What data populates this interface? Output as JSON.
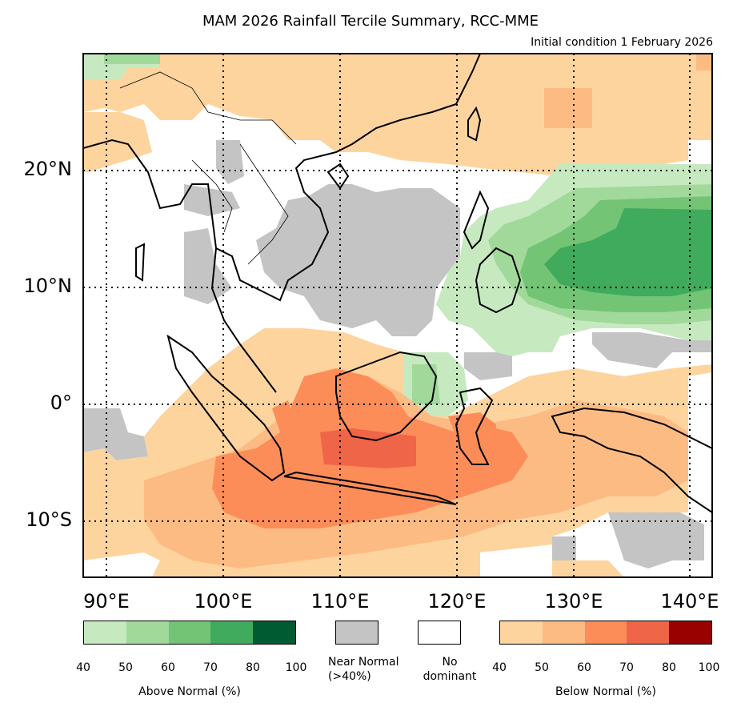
{
  "title": "MAM 2026 Rainfall Tercile Summary, RCC-MME",
  "subtitle": "Initial condition 1 February 2026",
  "lat_labels": [
    "20°N",
    "10°N",
    "0°",
    "10°S"
  ],
  "lon_labels": [
    "90°E",
    "100°E",
    "110°E",
    "120°E",
    "130°E",
    "140°E"
  ],
  "legend": {
    "above": {
      "title": "Above Normal (%)",
      "ticks": [
        "40",
        "50",
        "60",
        "70",
        "80",
        "100"
      ],
      "colors": [
        "#c7e9c0",
        "#a1d99b",
        "#74c476",
        "#41ab5d",
        "#005a32"
      ]
    },
    "near": {
      "label_line1": "Near Normal",
      "label_line2": "(>40%)",
      "color": "#c4c4c4"
    },
    "nodom": {
      "label_line1": "No",
      "label_line2": "dominant",
      "color": "#ffffff"
    },
    "below": {
      "title": "Below Normal (%)",
      "ticks": [
        "40",
        "50",
        "60",
        "70",
        "80",
        "100"
      ],
      "colors": [
        "#fdd49e",
        "#fdbb84",
        "#fc8d59",
        "#ef6548",
        "#990000"
      ]
    }
  },
  "map_regions": [
    {
      "name": "south-china-dry",
      "category": "below",
      "level": 0
    },
    {
      "name": "northwest-pacific-dry",
      "category": "below",
      "level": 0
    },
    {
      "name": "taiwan-dry-core",
      "category": "below",
      "level": 1
    },
    {
      "name": "philippine-sea-wet",
      "category": "above",
      "level": 3
    },
    {
      "name": "philippines-wet",
      "category": "above",
      "level": 0
    },
    {
      "name": "borneo-east-wet",
      "category": "above",
      "level": 1
    },
    {
      "name": "south-china-sea-near-normal",
      "category": "near",
      "level": 0
    },
    {
      "name": "sumatra-indian-ocean-dry",
      "category": "below",
      "level": 1
    },
    {
      "name": "java-sea-dry",
      "category": "below",
      "level": 2
    },
    {
      "name": "java-sea-core",
      "category": "below",
      "level": 3
    },
    {
      "name": "sulawesi-dry",
      "category": "below",
      "level": 2
    },
    {
      "name": "banda-sea-dry",
      "category": "below",
      "level": 1
    },
    {
      "name": "new-guinea-dry",
      "category": "below",
      "level": 1
    },
    {
      "name": "timor-sea-dry",
      "category": "below",
      "level": 0
    }
  ]
}
